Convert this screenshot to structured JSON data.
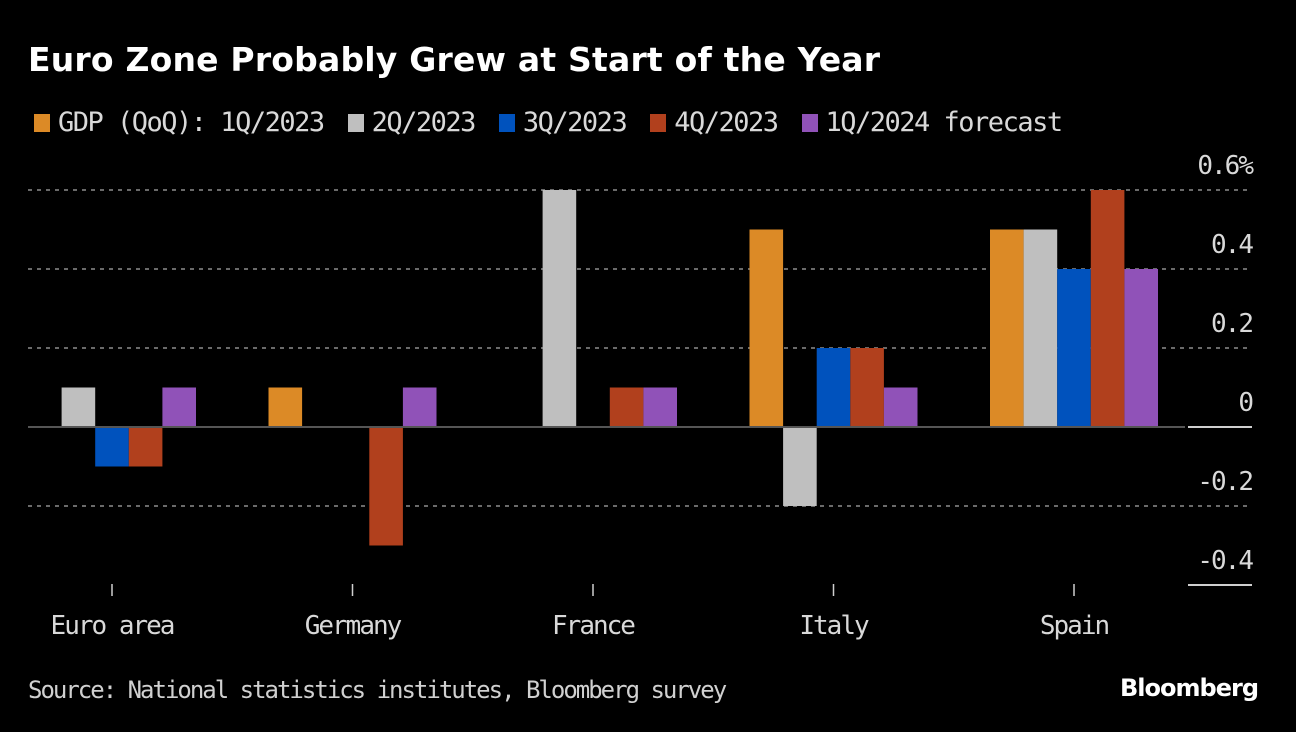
{
  "chart_data": {
    "type": "bar",
    "title": "Euro Zone Probably Grew at Start of the Year",
    "xlabel": "",
    "ylabel": "",
    "categories": [
      "Euro area",
      "Germany",
      "France",
      "Italy",
      "Spain"
    ],
    "series": [
      {
        "name": "GDP (QoQ): 1Q/2023",
        "color": "#DC8A26",
        "values": [
          0.0,
          0.1,
          0.0,
          0.5,
          0.5
        ]
      },
      {
        "name": "2Q/2023",
        "color": "#BFBFBF",
        "values": [
          0.1,
          0.0,
          0.6,
          -0.2,
          0.5
        ]
      },
      {
        "name": "3Q/2023",
        "color": "#0052BD",
        "values": [
          -0.1,
          0.0,
          0.0,
          0.2,
          0.4
        ]
      },
      {
        "name": "4Q/2023",
        "color": "#B1401D",
        "values": [
          -0.1,
          -0.3,
          0.1,
          0.2,
          0.6
        ]
      },
      {
        "name": "1Q/2024 forecast",
        "color": "#9052B8",
        "values": [
          0.1,
          0.1,
          0.1,
          0.1,
          0.4
        ]
      }
    ],
    "ylim": [
      -0.4,
      0.6
    ],
    "yticks": [
      0.6,
      0.4,
      0.2,
      0,
      -0.2,
      -0.4
    ],
    "ytick_labels": [
      "0.6%",
      "0.4",
      "0.2",
      "0",
      "-0.2",
      "-0.4"
    ],
    "y_axis_side": "right",
    "grid": true,
    "legend_position": "top-left"
  },
  "footer": {
    "source": "Source: National statistics institutes, Bloomberg survey",
    "brand": "Bloomberg"
  }
}
